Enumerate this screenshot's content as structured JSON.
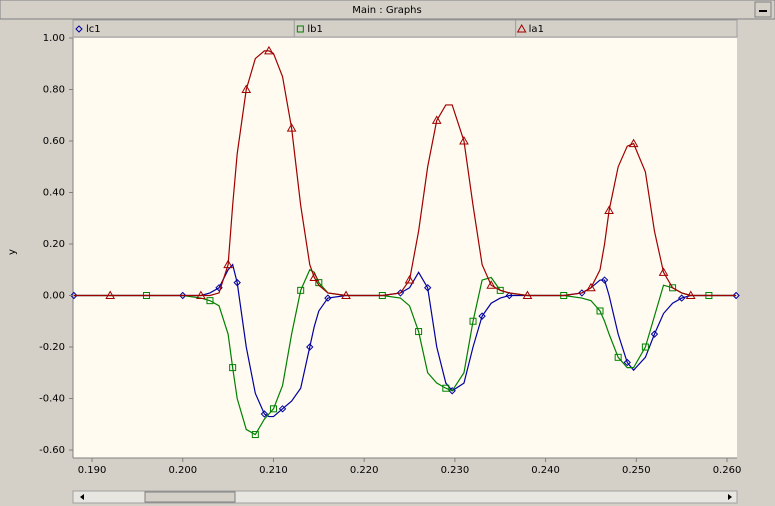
{
  "window": {
    "title": "Main : Graphs"
  },
  "chart_data": {
    "type": "line",
    "y_label": "y",
    "x": [
      0.188,
      0.192,
      0.196,
      0.2,
      0.202,
      0.203,
      0.204,
      0.205,
      0.2055,
      0.206,
      0.207,
      0.208,
      0.209,
      0.2095,
      0.21,
      0.211,
      0.212,
      0.213,
      0.214,
      0.2145,
      0.215,
      0.216,
      0.218,
      0.222,
      0.224,
      0.225,
      0.226,
      0.227,
      0.228,
      0.229,
      0.2297,
      0.231,
      0.232,
      0.233,
      0.234,
      0.235,
      0.236,
      0.238,
      0.242,
      0.244,
      0.245,
      0.246,
      0.2465,
      0.247,
      0.248,
      0.249,
      0.2497,
      0.251,
      0.252,
      0.253,
      0.254,
      0.255,
      0.256,
      0.258,
      0.261
    ],
    "series": [
      {
        "name": "lc1",
        "color": "#0000a0",
        "marker": "diamond",
        "values": [
          0,
          0,
          0,
          0,
          0,
          0.01,
          0.03,
          0.1,
          0.12,
          0.05,
          -0.2,
          -0.38,
          -0.46,
          -0.47,
          -0.47,
          -0.44,
          -0.41,
          -0.36,
          -0.2,
          -0.12,
          -0.06,
          -0.01,
          0,
          0,
          0.01,
          0.03,
          0.09,
          0.03,
          -0.2,
          -0.34,
          -0.37,
          -0.34,
          -0.2,
          -0.08,
          -0.03,
          -0.01,
          0,
          0,
          0,
          0.01,
          0.03,
          0.06,
          0.06,
          0.0,
          -0.15,
          -0.26,
          -0.29,
          -0.24,
          -0.15,
          -0.07,
          -0.03,
          -0.01,
          0,
          0,
          0
        ]
      },
      {
        "name": "lb1",
        "color": "#008000",
        "marker": "square",
        "values": [
          0,
          0,
          0,
          0,
          -0.01,
          -0.02,
          -0.04,
          -0.15,
          -0.28,
          -0.4,
          -0.52,
          -0.54,
          -0.48,
          -0.46,
          -0.44,
          -0.35,
          -0.15,
          0.02,
          0.1,
          0.09,
          0.05,
          0.01,
          0,
          0,
          -0.01,
          -0.04,
          -0.14,
          -0.3,
          -0.34,
          -0.36,
          -0.37,
          -0.3,
          -0.1,
          0.06,
          0.07,
          0.02,
          0.01,
          0,
          0,
          -0.01,
          -0.02,
          -0.06,
          -0.1,
          -0.15,
          -0.24,
          -0.28,
          -0.28,
          -0.2,
          -0.08,
          0.04,
          0.03,
          0.01,
          0,
          0,
          0
        ]
      },
      {
        "name": "la1",
        "color": "#a00000",
        "marker": "triangle",
        "values": [
          0,
          0,
          0,
          0,
          0,
          0,
          0.01,
          0.12,
          0.35,
          0.55,
          0.8,
          0.92,
          0.95,
          0.95,
          0.94,
          0.85,
          0.65,
          0.35,
          0.12,
          0.07,
          0.04,
          0.01,
          0,
          0,
          0.01,
          0.06,
          0.25,
          0.5,
          0.68,
          0.74,
          0.74,
          0.6,
          0.35,
          0.12,
          0.04,
          0.02,
          0.01,
          0,
          0,
          0.01,
          0.03,
          0.1,
          0.2,
          0.33,
          0.5,
          0.58,
          0.59,
          0.48,
          0.25,
          0.09,
          0.03,
          0.01,
          0,
          0,
          0
        ]
      }
    ],
    "xlim": [
      0.1879,
      0.2611
    ],
    "ylim": [
      -0.631,
      1.0
    ],
    "xticks": [
      {
        "value": 0.19,
        "label": "0.190"
      },
      {
        "value": 0.2,
        "label": "0.200"
      },
      {
        "value": 0.21,
        "label": "0.210"
      },
      {
        "value": 0.22,
        "label": "0.220"
      },
      {
        "value": 0.23,
        "label": "0.230"
      },
      {
        "value": 0.24,
        "label": "0.240"
      },
      {
        "value": 0.25,
        "label": "0.250"
      },
      {
        "value": 0.26,
        "label": "0.260"
      }
    ],
    "yticks": [
      {
        "value": 1.0,
        "label": "1.00"
      },
      {
        "value": 0.8,
        "label": "0.80"
      },
      {
        "value": 0.6,
        "label": "0.60"
      },
      {
        "value": 0.4,
        "label": "0.40"
      },
      {
        "value": 0.2,
        "label": "0.20"
      },
      {
        "value": 0,
        "label": "0.00"
      },
      {
        "value": -0.2,
        "label": "-0.20"
      },
      {
        "value": -0.4,
        "label": "-0.40"
      },
      {
        "value": -0.6,
        "label": "-0.60"
      }
    ]
  }
}
